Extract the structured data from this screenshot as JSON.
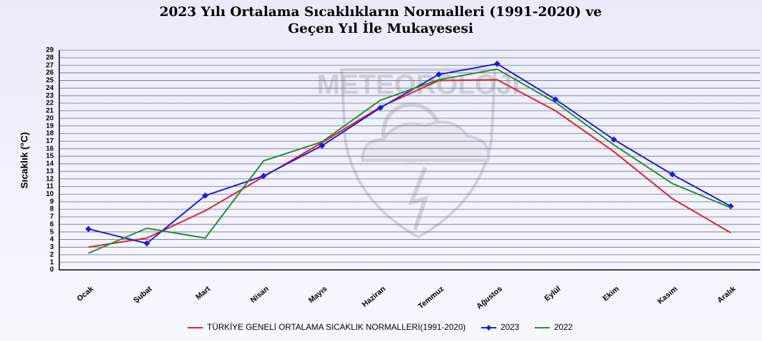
{
  "chart_data": {
    "type": "line",
    "title": [
      "2023 Yılı Ortalama Sıcaklıkların Normalleri (1991-2020) ve",
      "Geçen Yıl İle Mukayesesi"
    ],
    "watermark": "METEOROLOJI",
    "y_label": "Sıcaklık (°C)",
    "categories": [
      "Ocak",
      "Şubat",
      "Mart",
      "Nisan",
      "Mayıs",
      "Haziran",
      "Temmuz",
      "Ağustos",
      "Eylül",
      "Ekim",
      "Kasım",
      "Aralık"
    ],
    "series": [
      {
        "name": "TÜRKİYE GENELİ ORTALAMA SICAKLIK NORMALLERİ(1991-2020)",
        "color": "#e0202a",
        "marker": false,
        "values": [
          3.0,
          4.2,
          7.8,
          12.3,
          16.8,
          21.5,
          25.0,
          25.1,
          21.0,
          15.6,
          9.4,
          4.9
        ]
      },
      {
        "name": "2023",
        "color": "#1c1cdc",
        "marker": true,
        "values": [
          5.4,
          3.5,
          9.8,
          12.4,
          16.4,
          21.4,
          25.8,
          27.2,
          22.5,
          17.2,
          12.6,
          8.4
        ]
      },
      {
        "name": "2022",
        "color": "#2b8a2b",
        "marker": false,
        "values": [
          2.2,
          5.5,
          4.2,
          14.4,
          16.9,
          22.4,
          25.1,
          26.5,
          22.1,
          16.5,
          11.4,
          8.2
        ]
      }
    ],
    "ylim": [
      0,
      29
    ],
    "yticks": [
      0,
      1,
      2,
      3,
      4,
      5,
      6,
      7,
      8,
      9,
      10,
      11,
      12,
      13,
      14,
      15,
      16,
      17,
      18,
      19,
      20,
      21,
      22,
      23,
      24,
      25,
      26,
      27,
      28,
      29
    ],
    "grid": true
  }
}
